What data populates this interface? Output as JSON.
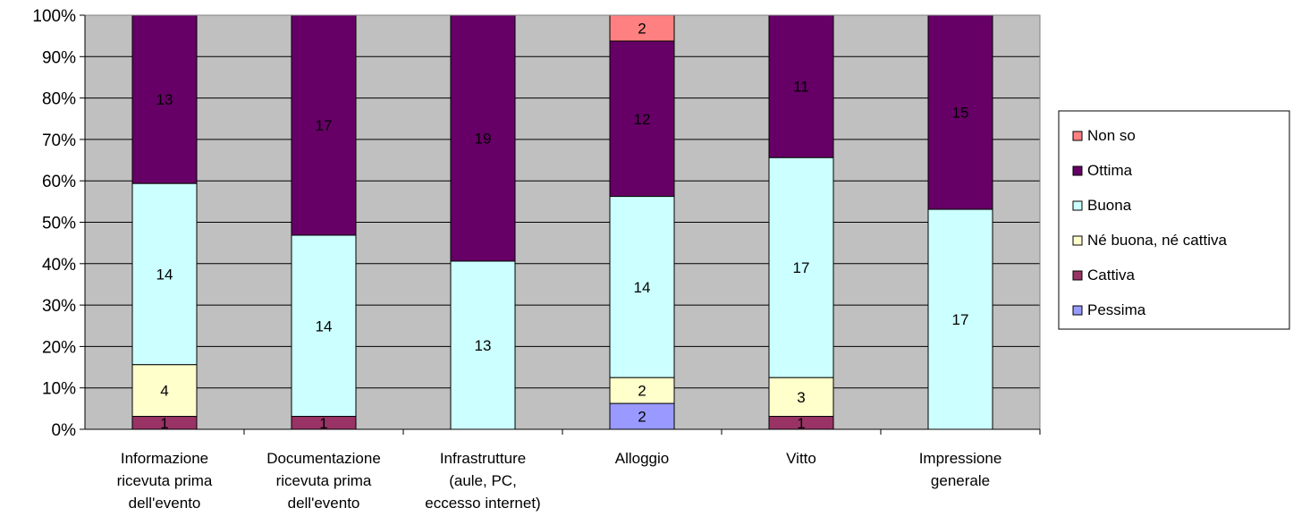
{
  "chart_data": {
    "type": "bar",
    "stacked": true,
    "percent_stacked": true,
    "title": "",
    "xlabel": "",
    "ylabel": "",
    "ylim": [
      0,
      100
    ],
    "y_ticks": [
      "0%",
      "10%",
      "20%",
      "30%",
      "40%",
      "50%",
      "60%",
      "70%",
      "80%",
      "90%",
      "100%"
    ],
    "grid": true,
    "legend_position": "right",
    "plot_background": "#c0c0c0",
    "categories": [
      [
        "Informazione",
        "ricevuta prima",
        "dell'evento"
      ],
      [
        "Documentazione",
        "ricevuta prima",
        "dell'evento"
      ],
      [
        "Infrastrutture",
        "(aule, PC,",
        "eccesso internet)"
      ],
      [
        "Alloggio"
      ],
      [
        "Vitto"
      ],
      [
        "Impressione",
        "generale"
      ]
    ],
    "series": [
      {
        "name": "Pessima",
        "color": "#9999ff",
        "values": [
          0,
          0,
          0,
          2,
          0,
          0
        ]
      },
      {
        "name": "Cattiva",
        "color": "#993366",
        "values": [
          1,
          1,
          0,
          0,
          1,
          0
        ]
      },
      {
        "name": "Né buona, né cattiva",
        "color": "#ffffcc",
        "values": [
          4,
          0,
          0,
          2,
          3,
          0
        ]
      },
      {
        "name": "Buona",
        "color": "#ccffff",
        "values": [
          14,
          14,
          13,
          14,
          17,
          17
        ]
      },
      {
        "name": "Ottima",
        "color": "#660066",
        "values": [
          13,
          17,
          19,
          12,
          11,
          15
        ]
      },
      {
        "name": "Non so",
        "color": "#ff8080",
        "values": [
          0,
          0,
          0,
          2,
          0,
          0
        ]
      }
    ]
  }
}
